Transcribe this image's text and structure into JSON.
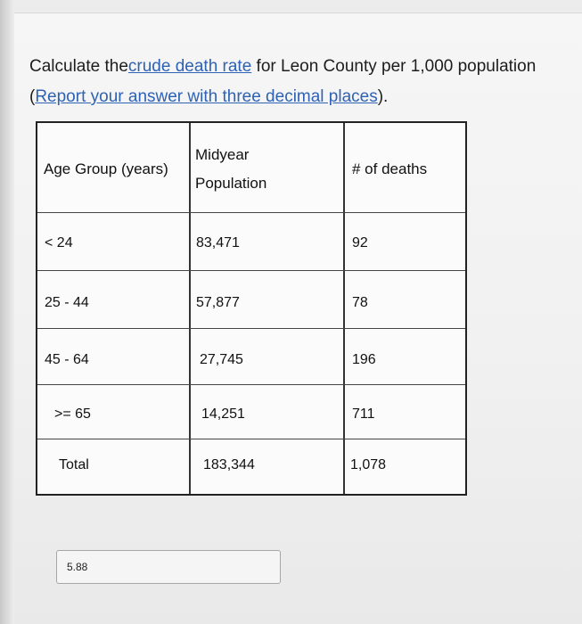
{
  "question": {
    "line1_prefix": "Calculate the",
    "line1_link": "crude death rate",
    "line1_suffix": " for Leon County per 1,000 population",
    "line2_open": "(",
    "line2_link": "Report your answer with three decimal places",
    "line2_close": ")."
  },
  "table": {
    "headers": {
      "age_group": "Age Group (years)",
      "midyear_line1": "Midyear",
      "midyear_line2": "Population",
      "deaths": "# of deaths"
    },
    "rows": [
      {
        "age": "< 24",
        "population": "83,471",
        "deaths": "92"
      },
      {
        "age": "25 - 44",
        "population": "57,877",
        "deaths": "78"
      },
      {
        "age": "45 - 64",
        "population": "27,745",
        "deaths": "196"
      },
      {
        "age": ">= 65",
        "population": "14,251",
        "deaths": "711"
      },
      {
        "age": "Total",
        "population": "183,344",
        "deaths": "1,078"
      }
    ]
  },
  "answer": {
    "value": "5.88"
  }
}
